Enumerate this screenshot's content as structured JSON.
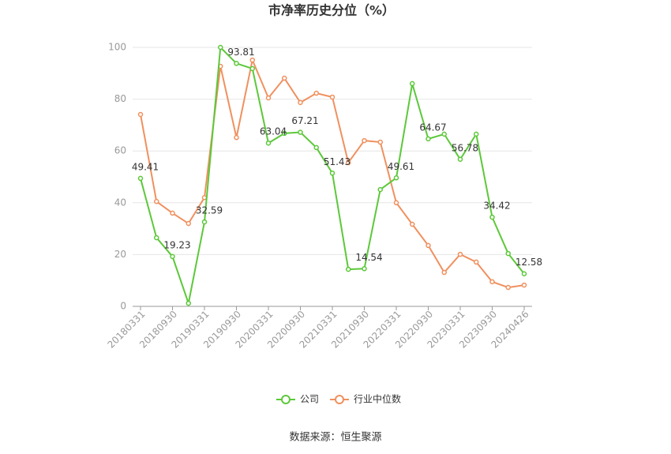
{
  "chart_data": {
    "type": "line",
    "title": "市净率历史分位（%）",
    "categories": [
      "20180331",
      null,
      "20180930",
      null,
      "20190331",
      null,
      "20190930",
      null,
      "20200331",
      null,
      "20200930",
      null,
      "20210331",
      null,
      "20210930",
      null,
      "20220331",
      null,
      "20220930",
      null,
      "20230331",
      null,
      "20230930",
      null,
      "20240426"
    ],
    "series": [
      {
        "name": "公司",
        "color": "#5cc83a",
        "values": [
          49.41,
          26.5,
          19.23,
          1.2,
          32.59,
          100,
          93.81,
          91.8,
          63.04,
          66.8,
          67.21,
          61.3,
          51.43,
          14.3,
          14.54,
          45.1,
          49.61,
          86,
          64.67,
          66.5,
          56.78,
          66.5,
          34.42,
          20.4,
          12.58
        ]
      },
      {
        "name": "行业中位数",
        "color": "#f0905e",
        "values": [
          74.1,
          40.5,
          36,
          32,
          42,
          92.7,
          65.2,
          95.1,
          80.5,
          88.1,
          78.7,
          82.3,
          80.8,
          55.5,
          64,
          63.4,
          40,
          31.7,
          23.5,
          13.1,
          20.1,
          17.1,
          9.5,
          7.3,
          8.2
        ]
      }
    ],
    "ylim": [
      0,
      100
    ],
    "yticks": [
      0,
      20,
      40,
      60,
      80,
      100
    ],
    "grid": true,
    "legend": "bottom",
    "source": "数据来源：恒生聚源"
  }
}
